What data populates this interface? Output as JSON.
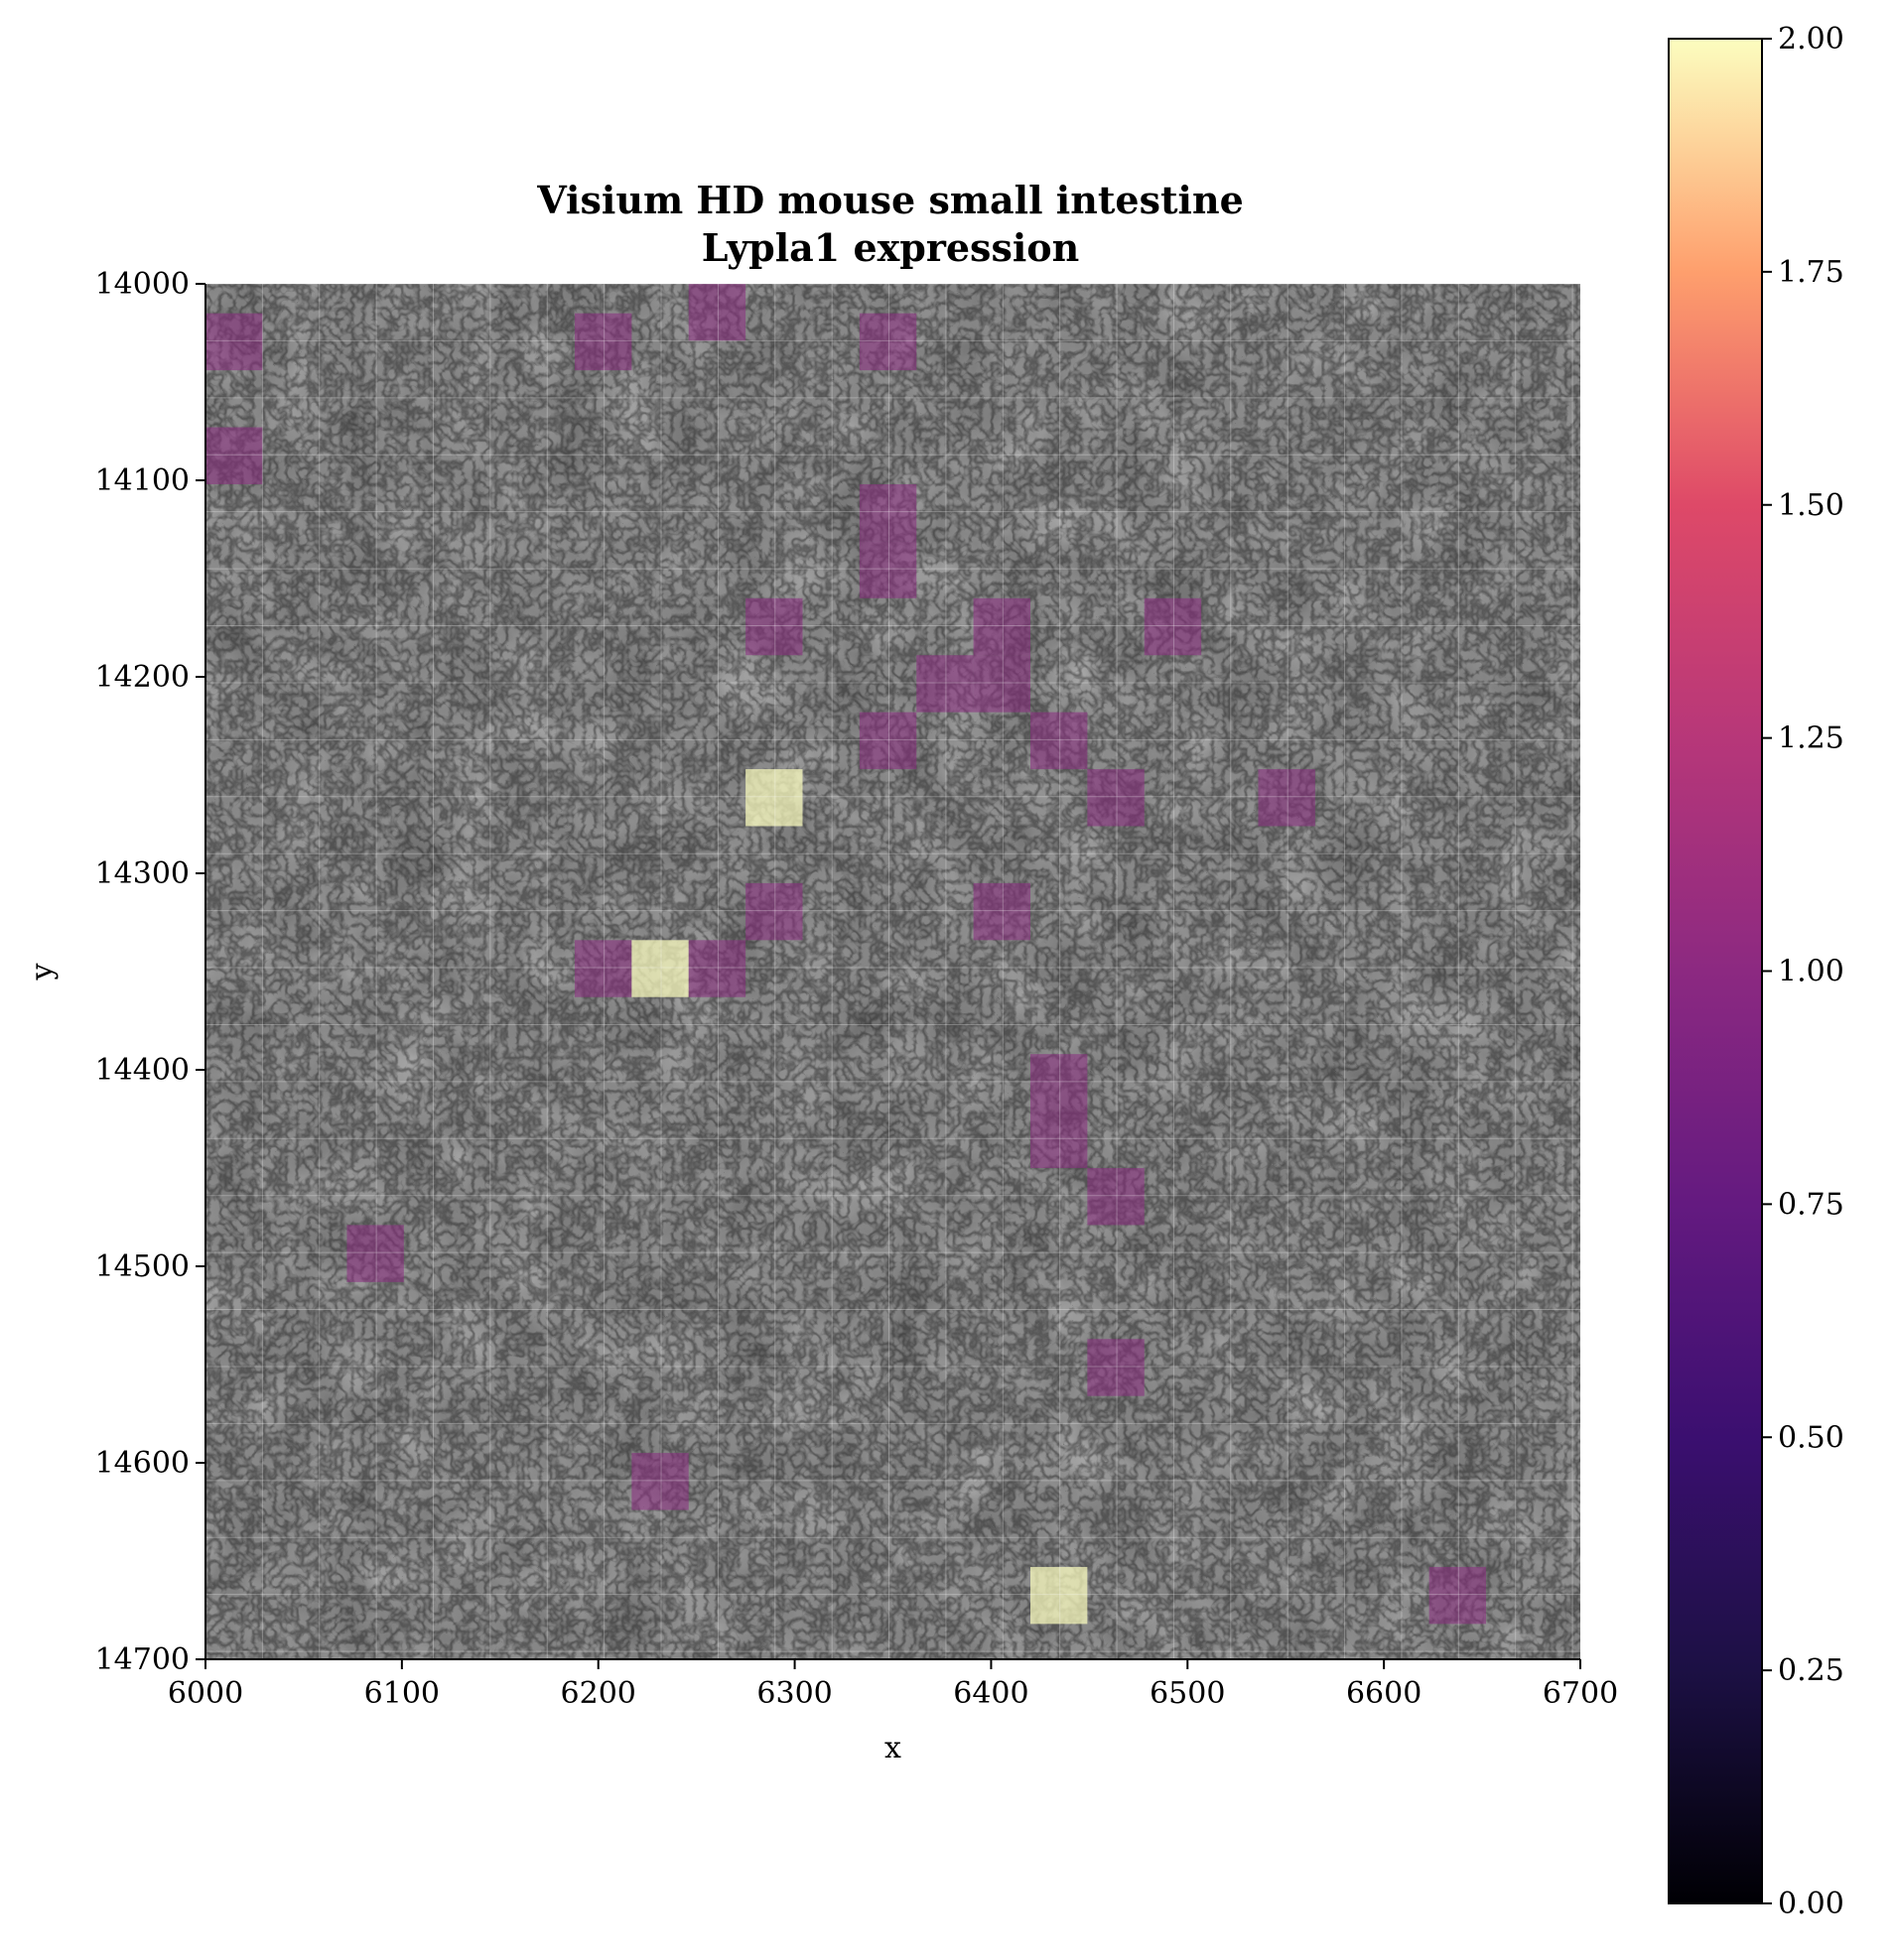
{
  "chart_data": {
    "type": "heatmap",
    "title": "Visium HD mouse small intestine",
    "subtitle": "Lypla1 expression",
    "xlabel": "x",
    "ylabel": "y",
    "xlim": [
      6000,
      6700
    ],
    "ylim": [
      14700,
      14000
    ],
    "y_inverted": true,
    "x_ticks": [
      "6000",
      "6100",
      "6200",
      "6300",
      "6400",
      "6500",
      "6600",
      "6700"
    ],
    "y_ticks": [
      "14000",
      "14100",
      "14200",
      "14300",
      "14400",
      "14500",
      "14600",
      "14700"
    ],
    "bin_size": 29,
    "colormap": "magma",
    "colorbar": {
      "min": 0,
      "max": 2,
      "ticks": [
        "0.00",
        "0.25",
        "0.50",
        "0.75",
        "1.00",
        "1.25",
        "1.50",
        "1.75",
        "2.00"
      ]
    },
    "background": "grayscale H&E tissue image",
    "grid": true,
    "bins": [
      {
        "x": 6246,
        "y": 14000,
        "value": 1
      },
      {
        "x": 6000,
        "y": 14015,
        "value": 1
      },
      {
        "x": 6188,
        "y": 14015,
        "value": 1
      },
      {
        "x": 6333,
        "y": 14015,
        "value": 1
      },
      {
        "x": 6000,
        "y": 14073,
        "value": 1
      },
      {
        "x": 6333,
        "y": 14102,
        "value": 1
      },
      {
        "x": 6333,
        "y": 14131,
        "value": 1
      },
      {
        "x": 6275,
        "y": 14160,
        "value": 1
      },
      {
        "x": 6391,
        "y": 14160,
        "value": 1
      },
      {
        "x": 6478,
        "y": 14160,
        "value": 1
      },
      {
        "x": 6362,
        "y": 14189,
        "value": 1
      },
      {
        "x": 6391,
        "y": 14189,
        "value": 1
      },
      {
        "x": 6333,
        "y": 14218,
        "value": 1
      },
      {
        "x": 6420,
        "y": 14218,
        "value": 1
      },
      {
        "x": 6275,
        "y": 14247,
        "value": 2
      },
      {
        "x": 6449,
        "y": 14247,
        "value": 1
      },
      {
        "x": 6536,
        "y": 14247,
        "value": 1
      },
      {
        "x": 6275,
        "y": 14305,
        "value": 1
      },
      {
        "x": 6391,
        "y": 14305,
        "value": 1
      },
      {
        "x": 6188,
        "y": 14334,
        "value": 1
      },
      {
        "x": 6217,
        "y": 14334,
        "value": 2
      },
      {
        "x": 6246,
        "y": 14334,
        "value": 1
      },
      {
        "x": 6420,
        "y": 14392,
        "value": 1
      },
      {
        "x": 6420,
        "y": 14421,
        "value": 1
      },
      {
        "x": 6449,
        "y": 14450,
        "value": 1
      },
      {
        "x": 6072,
        "y": 14479,
        "value": 1
      },
      {
        "x": 6449,
        "y": 14537,
        "value": 1
      },
      {
        "x": 6217,
        "y": 14595,
        "value": 1
      },
      {
        "x": 6420,
        "y": 14653,
        "value": 2
      },
      {
        "x": 6623,
        "y": 14653,
        "value": 1
      }
    ]
  }
}
